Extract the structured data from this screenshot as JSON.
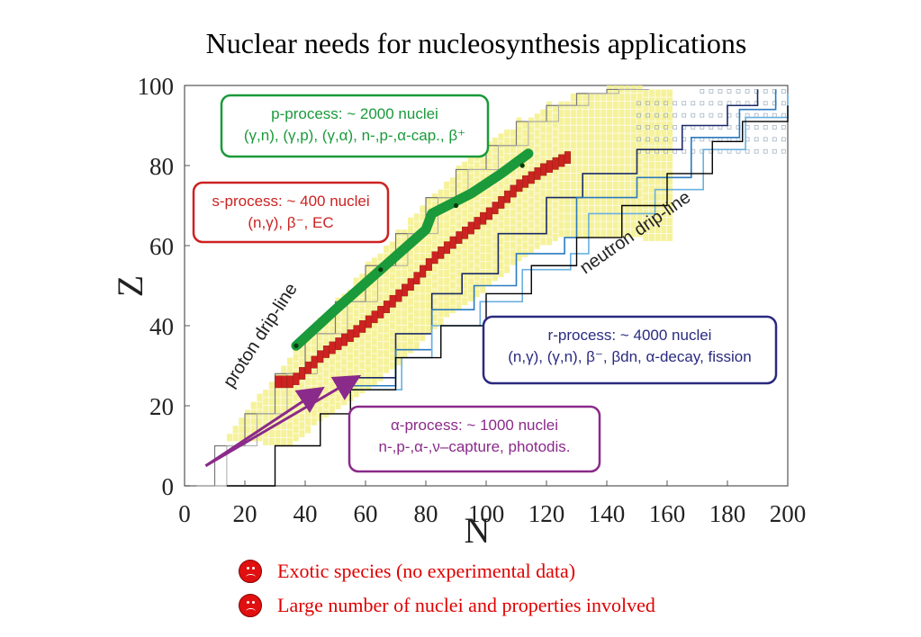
{
  "slide": {
    "title": "Nuclear needs for nucleosynthesis applications",
    "bullets": [
      "Exotic species (no experimental data)",
      "Large number of nuclei and properties involved"
    ],
    "bullet_icon": "sad-face-icon"
  },
  "chart_data": {
    "type": "scatter",
    "xlabel": "N",
    "ylabel": "Z",
    "xlim": [
      0,
      200
    ],
    "ylim": [
      0,
      100
    ],
    "xticks": [
      0,
      20,
      40,
      60,
      80,
      100,
      120,
      140,
      160,
      180,
      200
    ],
    "yticks": [
      0,
      20,
      40,
      60,
      80,
      100
    ],
    "grid": false,
    "colors": {
      "stable": "#c0392b",
      "known": "#f5f08a",
      "p_process": "#1a9a3a",
      "s_process": "#cc2222",
      "r_process": "#2a2a80",
      "alpha_process": "#8a2a8a",
      "r_paths": [
        "#1a2a6a",
        "#2a7ac0",
        "#6ab0e0",
        "#000000"
      ]
    },
    "drip_lines": [
      {
        "label": "proton drip-line",
        "points": [
          [
            0,
            0
          ],
          [
            10,
            10
          ],
          [
            20,
            18
          ],
          [
            30,
            28
          ],
          [
            40,
            38
          ],
          [
            50,
            46
          ],
          [
            60,
            55
          ],
          [
            70,
            63
          ],
          [
            80,
            72
          ],
          [
            90,
            79
          ],
          [
            100,
            85
          ],
          [
            110,
            91
          ],
          [
            120,
            95
          ],
          [
            130,
            98
          ],
          [
            140,
            99
          ],
          [
            150,
            99
          ]
        ]
      },
      {
        "label": "neutron drip-line",
        "points": [
          [
            14,
            0
          ],
          [
            30,
            10
          ],
          [
            45,
            18
          ],
          [
            55,
            24
          ],
          [
            70,
            32
          ],
          [
            85,
            40
          ],
          [
            100,
            48
          ],
          [
            115,
            55
          ],
          [
            130,
            62
          ],
          [
            145,
            70
          ],
          [
            160,
            78
          ],
          [
            175,
            86
          ],
          [
            185,
            91
          ],
          [
            200,
            95
          ]
        ]
      }
    ],
    "s_process_path": [
      [
        35,
        26
      ],
      [
        45,
        33
      ],
      [
        55,
        38
      ],
      [
        65,
        44
      ],
      [
        75,
        51
      ],
      [
        82,
        57
      ],
      [
        90,
        62
      ],
      [
        100,
        68
      ],
      [
        110,
        75
      ],
      [
        118,
        79
      ],
      [
        126,
        82
      ]
    ],
    "p_process_path": [
      [
        37,
        35
      ],
      [
        50,
        44
      ],
      [
        65,
        54
      ],
      [
        80,
        64
      ],
      [
        82,
        68
      ],
      [
        95,
        73
      ],
      [
        105,
        78
      ],
      [
        114,
        83
      ]
    ],
    "p_process_arrows": [
      [
        37,
        35
      ],
      [
        65,
        54
      ],
      [
        90,
        70
      ],
      [
        112,
        80
      ]
    ],
    "alpha_process_arrows": [
      {
        "from": [
          7,
          5
        ],
        "to": [
          45,
          24
        ]
      },
      {
        "from": [
          7,
          5
        ],
        "to": [
          57,
          27
        ]
      }
    ],
    "r_process_paths": [
      {
        "color": "#1a2a6a",
        "points": [
          [
            50,
            27
          ],
          [
            70,
            38
          ],
          [
            82,
            48
          ],
          [
            92,
            53
          ],
          [
            104,
            63
          ],
          [
            120,
            72
          ],
          [
            132,
            78
          ],
          [
            150,
            84
          ],
          [
            165,
            90
          ],
          [
            180,
            95
          ],
          [
            190,
            99
          ]
        ]
      },
      {
        "color": "#2a7ac0",
        "points": [
          [
            52,
            25
          ],
          [
            70,
            34
          ],
          [
            82,
            44
          ],
          [
            96,
            50
          ],
          [
            110,
            58
          ],
          [
            126,
            62
          ],
          [
            130,
            72
          ],
          [
            150,
            77
          ],
          [
            168,
            87
          ],
          [
            184,
            94
          ],
          [
            196,
            99
          ]
        ]
      },
      {
        "color": "#6ab0e0",
        "points": [
          [
            54,
            24
          ],
          [
            72,
            32
          ],
          [
            82,
            40
          ],
          [
            98,
            46
          ],
          [
            112,
            54
          ],
          [
            128,
            58
          ],
          [
            134,
            68
          ],
          [
            156,
            74
          ],
          [
            172,
            84
          ],
          [
            186,
            92
          ],
          [
            200,
            98
          ]
        ]
      }
    ],
    "annotations": [
      {
        "lines": [
          "p-process: ~ 2000 nuclei",
          "(γ,n), (γ,p), (γ,α), n-,p-,α-cap., β⁺"
        ],
        "color": "#1a9a3a"
      },
      {
        "lines": [
          "s-process: ~ 400 nuclei",
          "(n,γ), β⁻, EC"
        ],
        "color": "#cc2222"
      },
      {
        "lines": [
          "r-process: ~ 4000 nuclei",
          "(n,γ), (γ,n), β⁻, βdn, α-decay, fission"
        ],
        "color": "#2a2a80"
      },
      {
        "lines": [
          "α-process: ~ 1000 nuclei",
          "n-,p-,α-,ν–capture, photodis."
        ],
        "color": "#8a2a8a"
      }
    ]
  }
}
